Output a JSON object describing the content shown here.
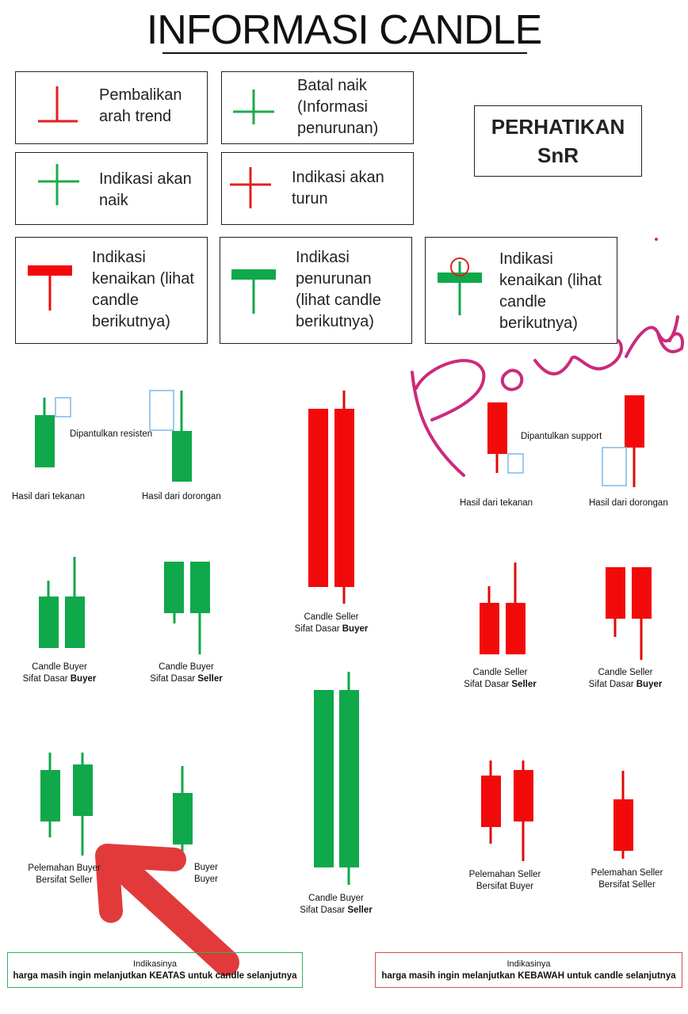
{
  "title": "INFORMASI CANDLE",
  "legend": [
    {
      "text": "Pembalikan\narah trend",
      "icon": "inverted-t-icon",
      "color": "#e02020"
    },
    {
      "text": "Batal naik\n(Informasi\npenurunan)",
      "icon": "plus-icon",
      "color": "#1faa4a"
    },
    {
      "text": "Indikasi akan\nnaik",
      "icon": "plus-icon",
      "color": "#1faa4a"
    },
    {
      "text": "Indikasi akan\nturun",
      "icon": "plus-icon",
      "color": "#e02020"
    },
    {
      "text": "Indikasi\nkenaikan (lihat\ncandle\nberikutnya)",
      "icon": "t-candle-icon",
      "color": "#e02020"
    },
    {
      "text": "Indikasi\npenurunan\n(lihat candle\nberikutnya)",
      "icon": "t-candle-icon",
      "color": "#1faa4a"
    },
    {
      "text": "Indikasi\nkenaikan (lihat\ncandle\nberikutnya)",
      "icon": "t-candle-circled-icon",
      "color": "#1faa4a"
    }
  ],
  "snr": {
    "line1": "PERHATIKAN",
    "line2": "SnR"
  },
  "sections": {
    "resist_note": "Dipantulkan resisten",
    "support_note": "Dipantulkan support",
    "hasil_tekanan_left": "Hasil dari tekanan",
    "hasil_dorongan_left": "Hasil dari dorongan",
    "hasil_tekanan_right": "Hasil dari tekanan",
    "hasil_dorongan_right": "Hasil dari dorongan",
    "buyer_buyer": {
      "l1": "Candle Buyer",
      "l2a": "Sifat Dasar ",
      "l2b": "Buyer"
    },
    "buyer_seller": {
      "l1": "Candle Buyer",
      "l2a": "Sifat Dasar ",
      "l2b": "Seller"
    },
    "big_seller_buyer": {
      "l1": "Candle Seller",
      "l2a": "Sifat Dasar ",
      "l2b": "Buyer"
    },
    "big_buyer_seller": {
      "l1": "Candle Buyer",
      "l2a": "Sifat Dasar ",
      "l2b": "Seller"
    },
    "seller_seller": {
      "l1": "Candle Seller",
      "l2a": "Sifat Dasar ",
      "l2b": "Seller"
    },
    "seller_buyer": {
      "l1": "Candle Seller",
      "l2a": "Sifat Dasar ",
      "l2b": "Buyer"
    },
    "pel_buyer_seller": {
      "l1": "Pelemahan Buyer",
      "l2": "Bersifat Seller"
    },
    "pel_buyer_buyer_partial": {
      "l1": "Buyer",
      "l2": "Buyer"
    },
    "pel_seller_buyer": {
      "l1": "Pelemahan Seller",
      "l2": "Bersifat Buyer"
    },
    "pel_seller_seller": {
      "l1": "Pelemahan Seller",
      "l2": "Bersifat Seller"
    }
  },
  "indications": {
    "left": {
      "heading": "Indikasinya",
      "text": "harga masih ingin melanjutkan KEATAS untuk candle selanjutnya"
    },
    "right": {
      "heading": "Indikasinya",
      "text": "harga masih ingin melanjutkan KEBAWAH untuk candle selanjutnya"
    }
  },
  "annotations": {
    "signature": "handwritten-signature",
    "arrow": "red-arrow-annotation"
  },
  "colors": {
    "green": "#0fa84a",
    "red": "#f20a0a",
    "blue_box": "#7fb8e6",
    "pink": "#cc2a7a",
    "arrow": "#e23a3a"
  }
}
